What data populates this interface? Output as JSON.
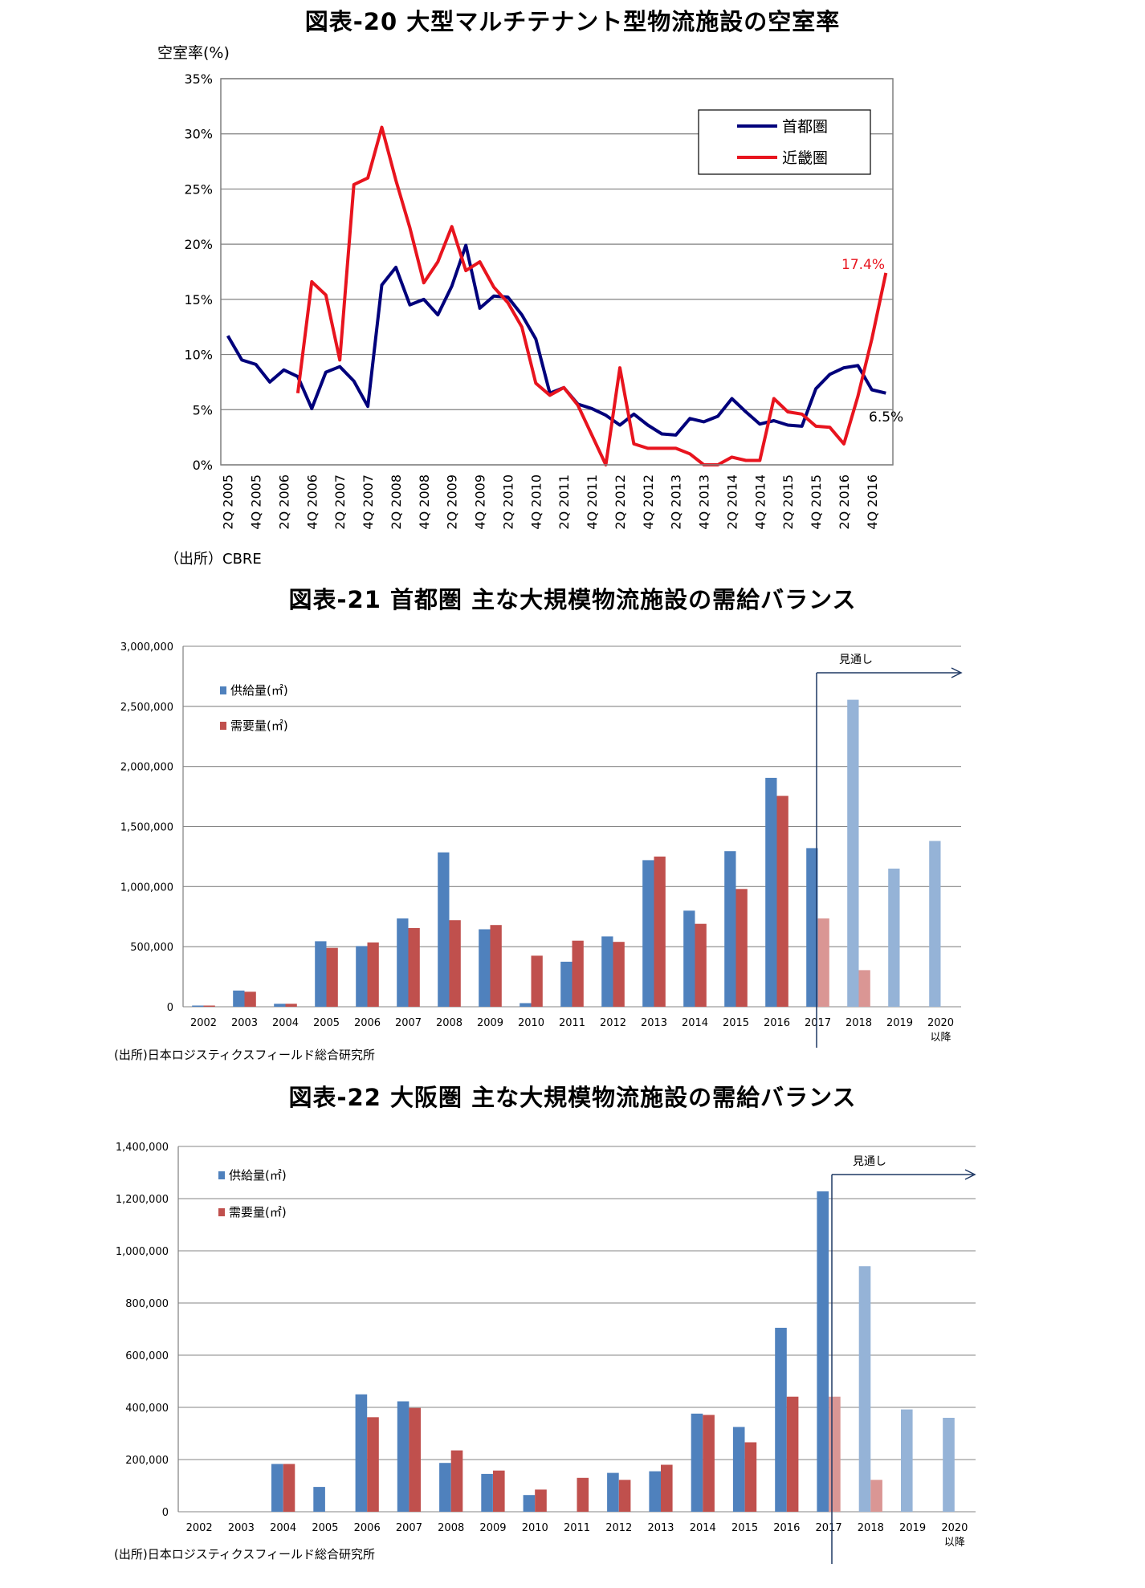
{
  "charts": [
    {
      "id": "fig20",
      "title": "図表-20  大型マルチテナント型物流施設の空室率",
      "source": "（出所）CBRE",
      "ylabel": "空室率(%)",
      "yticks": [
        "0%",
        "5%",
        "10%",
        "15%",
        "20%",
        "25%",
        "30%",
        "35%"
      ],
      "xticks": [
        "2Q 2005",
        "4Q 2005",
        "2Q 2006",
        "4Q 2006",
        "2Q 2007",
        "4Q 2007",
        "2Q 2008",
        "4Q 2008",
        "2Q 2009",
        "4Q 2009",
        "2Q 2010",
        "4Q 2010",
        "2Q 2011",
        "4Q 2011",
        "2Q 2012",
        "4Q 2012",
        "2Q 2013",
        "4Q 2013",
        "2Q 2014",
        "4Q 2014",
        "2Q 2015",
        "4Q 2015",
        "2Q 2016",
        "4Q 2016"
      ],
      "annotations": {
        "kinki_last": "17.4%",
        "shuto_last": "6.5%"
      }
    },
    {
      "id": "fig21",
      "title": "図表-21  首都圏  主な大規模物流施設の需給バランス",
      "source": "(出所)日本ロジスティクスフィールド総合研究所",
      "forecast_label": "見通し",
      "yticks": [
        "0",
        "500,000",
        "1,000,000",
        "1,500,000",
        "2,000,000",
        "2,500,000",
        "3,000,000"
      ],
      "categories_line1": [
        "2002",
        "2003",
        "2004",
        "2005",
        "2006",
        "2007",
        "2008",
        "2009",
        "2010",
        "2011",
        "2012",
        "2013",
        "2014",
        "2015",
        "2016",
        "2017",
        "2018",
        "2019",
        "2020"
      ],
      "categories_line2": [
        "",
        "",
        "",
        "",
        "",
        "",
        "",
        "",
        "",
        "",
        "",
        "",
        "",
        "",
        "",
        "",
        "",
        "",
        "以降"
      ]
    },
    {
      "id": "fig22",
      "title": "図表-22  大阪圏  主な大規模物流施設の需給バランス",
      "source": "(出所)日本ロジスティクスフィールド総合研究所",
      "forecast_label": "見通し",
      "yticks": [
        "0",
        "200,000",
        "400,000",
        "600,000",
        "800,000",
        "1,000,000",
        "1,200,000",
        "1,400,000"
      ],
      "categories_line1": [
        "2002",
        "2003",
        "2004",
        "2005",
        "2006",
        "2007",
        "2008",
        "2009",
        "2010",
        "2011",
        "2012",
        "2013",
        "2014",
        "2015",
        "2016",
        "2017",
        "2018",
        "2019",
        "2020"
      ],
      "categories_line2": [
        "",
        "",
        "",
        "",
        "",
        "",
        "",
        "",
        "",
        "",
        "",
        "",
        "",
        "",
        "",
        "",
        "",
        "",
        "以降"
      ]
    }
  ],
  "chart_data": [
    {
      "type": "line",
      "x": [
        "2Q 2005",
        "3Q 2005",
        "4Q 2005",
        "1Q 2006",
        "2Q 2006",
        "3Q 2006",
        "4Q 2006",
        "1Q 2007",
        "2Q 2007",
        "3Q 2007",
        "4Q 2007",
        "1Q 2008",
        "2Q 2008",
        "3Q 2008",
        "4Q 2008",
        "1Q 2009",
        "2Q 2009",
        "3Q 2009",
        "4Q 2009",
        "1Q 2010",
        "2Q 2010",
        "3Q 2010",
        "4Q 2010",
        "1Q 2011",
        "2Q 2011",
        "3Q 2011",
        "4Q 2011",
        "1Q 2012",
        "2Q 2012",
        "3Q 2012",
        "4Q 2012",
        "1Q 2013",
        "2Q 2013",
        "3Q 2013",
        "4Q 2013",
        "1Q 2014",
        "2Q 2014",
        "3Q 2014",
        "4Q 2014",
        "1Q 2015",
        "2Q 2015",
        "3Q 2015",
        "4Q 2015",
        "1Q 2016",
        "2Q 2016",
        "3Q 2016",
        "4Q 2016",
        "1Q 2017"
      ],
      "ylim": [
        0,
        35
      ],
      "legend": "top-right",
      "series": [
        {
          "name": "首都圏",
          "color": "#00007b",
          "values": [
            11.7,
            9.5,
            9.1,
            7.5,
            8.6,
            8.0,
            5.1,
            8.4,
            8.9,
            7.6,
            5.3,
            16.3,
            17.9,
            14.5,
            15.0,
            13.6,
            16.2,
            19.9,
            14.2,
            15.3,
            15.2,
            13.6,
            11.4,
            6.5,
            7.0,
            5.5,
            5.1,
            4.5,
            3.6,
            4.6,
            3.6,
            2.8,
            2.7,
            4.2,
            3.9,
            4.4,
            6.0,
            4.8,
            3.7,
            4.0,
            3.6,
            3.5,
            6.9,
            8.2,
            8.8,
            9.0,
            6.8,
            6.5
          ]
        },
        {
          "name": "近畿圏",
          "color": "#e8141e",
          "values": [
            null,
            null,
            null,
            null,
            null,
            6.5,
            16.6,
            15.4,
            9.5,
            25.4,
            26.0,
            30.6,
            25.8,
            21.5,
            16.5,
            18.4,
            21.6,
            17.6,
            18.4,
            16.1,
            14.7,
            12.5,
            7.4,
            6.3,
            7.0,
            5.4,
            2.7,
            0.0,
            8.8,
            1.9,
            1.5,
            1.5,
            1.5,
            1.0,
            0.0,
            0.0,
            0.7,
            0.4,
            0.4,
            6.0,
            4.8,
            4.6,
            3.5,
            3.4,
            1.9,
            6.2,
            11.4,
            17.4
          ]
        }
      ]
    },
    {
      "type": "bar",
      "categories": [
        "2002",
        "2003",
        "2004",
        "2005",
        "2006",
        "2007",
        "2008",
        "2009",
        "2010",
        "2011",
        "2012",
        "2013",
        "2014",
        "2015",
        "2016",
        "2017",
        "2018",
        "2019",
        "2020 以降"
      ],
      "ylim": [
        0,
        3000000
      ],
      "forecast_from": "2017",
      "series": [
        {
          "name": "供給量(㎡)",
          "color": "#4f81bd",
          "forecast_color": "#95b3d7",
          "values": [
            10000,
            135000,
            25000,
            545000,
            505000,
            735000,
            1285000,
            645000,
            30000,
            375000,
            585000,
            1220000,
            800000,
            1295000,
            1905000,
            1320000,
            2555000,
            1150000,
            1380000
          ],
          "forecast": [
            false,
            false,
            false,
            false,
            false,
            false,
            false,
            false,
            false,
            false,
            false,
            false,
            false,
            false,
            false,
            false,
            true,
            true,
            true
          ]
        },
        {
          "name": "需要量(㎡)",
          "color": "#c0504d",
          "forecast_color": "#da9694",
          "values": [
            10000,
            125000,
            25000,
            490000,
            535000,
            655000,
            720000,
            680000,
            425000,
            550000,
            540000,
            1250000,
            690000,
            980000,
            1755000,
            735000,
            305000,
            null,
            null
          ],
          "forecast": [
            false,
            false,
            false,
            false,
            false,
            false,
            false,
            false,
            false,
            false,
            false,
            false,
            false,
            false,
            false,
            true,
            true,
            true,
            true
          ]
        }
      ]
    },
    {
      "type": "bar",
      "categories": [
        "2002",
        "2003",
        "2004",
        "2005",
        "2006",
        "2007",
        "2008",
        "2009",
        "2010",
        "2011",
        "2012",
        "2013",
        "2014",
        "2015",
        "2016",
        "2017",
        "2018",
        "2019",
        "2020 以降"
      ],
      "ylim": [
        0,
        1400000
      ],
      "forecast_from": "2017",
      "series": [
        {
          "name": "供給量(㎡)",
          "color": "#4f81bd",
          "forecast_color": "#95b3d7",
          "values": [
            null,
            null,
            183000,
            95000,
            450000,
            423000,
            187000,
            145000,
            64000,
            null,
            149000,
            155000,
            376000,
            325000,
            705000,
            1228000,
            941000,
            392000,
            360000
          ],
          "forecast": [
            false,
            false,
            false,
            false,
            false,
            false,
            false,
            false,
            false,
            false,
            false,
            false,
            false,
            false,
            false,
            false,
            true,
            true,
            true
          ]
        },
        {
          "name": "需要量(㎡)",
          "color": "#c0504d",
          "forecast_color": "#da9694",
          "values": [
            null,
            null,
            183000,
            null,
            362000,
            398000,
            235000,
            158000,
            85000,
            130000,
            122000,
            180000,
            371000,
            266000,
            441000,
            441000,
            122000,
            null,
            null
          ],
          "forecast": [
            false,
            false,
            false,
            false,
            false,
            false,
            false,
            false,
            false,
            false,
            false,
            false,
            false,
            false,
            false,
            true,
            true,
            true,
            true
          ]
        }
      ]
    }
  ]
}
